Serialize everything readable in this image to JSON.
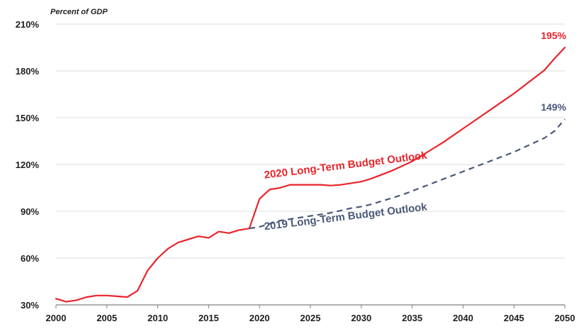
{
  "chart_data": {
    "type": "line",
    "title": "",
    "ylabel": "Percent of GDP",
    "xlabel": "",
    "xlim": [
      2000,
      2050
    ],
    "ylim": [
      30,
      210
    ],
    "x_ticks": [
      2000,
      2005,
      2010,
      2015,
      2020,
      2025,
      2030,
      2035,
      2040,
      2045,
      2050
    ],
    "x_tick_labels": [
      "2000",
      "2005",
      "2010",
      "2015",
      "2020",
      "2025",
      "2030",
      "2035",
      "2040",
      "2045",
      "2050"
    ],
    "y_ticks": [
      30,
      60,
      90,
      120,
      150,
      180,
      210
    ],
    "y_tick_labels": [
      "30%",
      "60%",
      "90%",
      "120%",
      "150%",
      "180%",
      "210%"
    ],
    "grid": "horizontal",
    "series": [
      {
        "name": "2020 Long-Term Budget Outlook",
        "color": "#e8252c",
        "style": "solid",
        "label_at": [
          2020.5,
          111
        ],
        "end_label": "195%",
        "points": [
          [
            2000,
            34
          ],
          [
            2001,
            32
          ],
          [
            2002,
            33
          ],
          [
            2003,
            35
          ],
          [
            2004,
            36
          ],
          [
            2005,
            36
          ],
          [
            2006,
            35.5
          ],
          [
            2007,
            35
          ],
          [
            2008,
            39
          ],
          [
            2009,
            52
          ],
          [
            2010,
            60
          ],
          [
            2011,
            66
          ],
          [
            2012,
            70
          ],
          [
            2013,
            72
          ],
          [
            2014,
            74
          ],
          [
            2015,
            73
          ],
          [
            2016,
            77
          ],
          [
            2017,
            76
          ],
          [
            2018,
            78
          ],
          [
            2019,
            79
          ],
          [
            2020,
            98
          ],
          [
            2021,
            104
          ],
          [
            2022,
            105
          ],
          [
            2023,
            107
          ],
          [
            2024,
            107
          ],
          [
            2025,
            107
          ],
          [
            2026,
            107
          ],
          [
            2027,
            106.5
          ],
          [
            2028,
            107
          ],
          [
            2029,
            108
          ],
          [
            2030,
            109
          ],
          [
            2031,
            111
          ],
          [
            2032,
            113.5
          ],
          [
            2033,
            116
          ],
          [
            2034,
            119
          ],
          [
            2035,
            122
          ],
          [
            2036,
            126
          ],
          [
            2037,
            130
          ],
          [
            2038,
            134
          ],
          [
            2039,
            138.5
          ],
          [
            2040,
            143
          ],
          [
            2041,
            147.5
          ],
          [
            2042,
            152
          ],
          [
            2043,
            156.5
          ],
          [
            2044,
            161
          ],
          [
            2045,
            165.5
          ],
          [
            2046,
            170.5
          ],
          [
            2047,
            175.5
          ],
          [
            2048,
            180.5
          ],
          [
            2049,
            188
          ],
          [
            2050,
            195
          ]
        ]
      },
      {
        "name": "2019 Long-Term Budget Outlook",
        "color": "#4a5878",
        "style": "dashed",
        "label_at": [
          2020.5,
          78
        ],
        "end_label": "149%",
        "points": [
          [
            2019,
            79
          ],
          [
            2020,
            80
          ],
          [
            2021,
            82
          ],
          [
            2022,
            84
          ],
          [
            2023,
            85
          ],
          [
            2024,
            86
          ],
          [
            2025,
            87
          ],
          [
            2026,
            88
          ],
          [
            2027,
            89
          ],
          [
            2028,
            90.5
          ],
          [
            2029,
            92
          ],
          [
            2030,
            93
          ],
          [
            2031,
            94.5
          ],
          [
            2032,
            96.5
          ],
          [
            2033,
            98.5
          ],
          [
            2034,
            100.5
          ],
          [
            2035,
            103
          ],
          [
            2036,
            105.5
          ],
          [
            2037,
            108
          ],
          [
            2038,
            110.5
          ],
          [
            2039,
            113
          ],
          [
            2040,
            115.5
          ],
          [
            2041,
            118
          ],
          [
            2042,
            120.5
          ],
          [
            2043,
            123
          ],
          [
            2044,
            125.5
          ],
          [
            2045,
            128
          ],
          [
            2046,
            131
          ],
          [
            2047,
            134
          ],
          [
            2048,
            137
          ],
          [
            2049,
            141.5
          ],
          [
            2050,
            149
          ]
        ]
      }
    ]
  }
}
